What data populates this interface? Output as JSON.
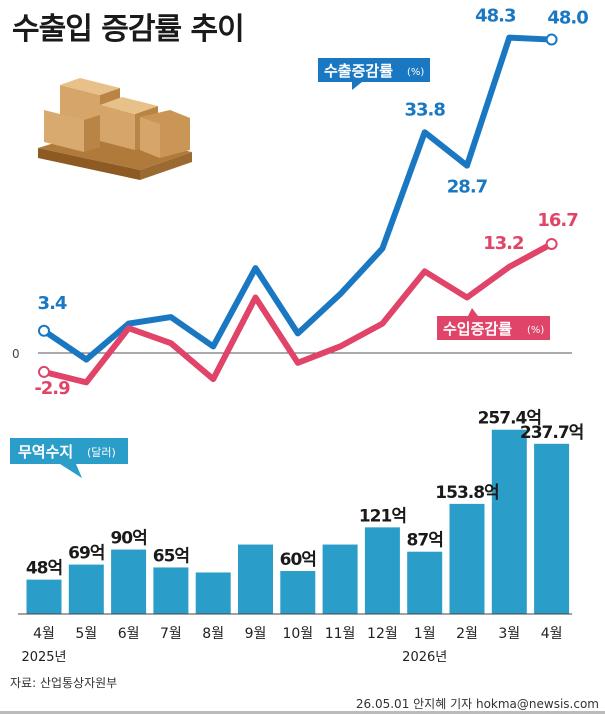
{
  "title": "수출입 증감률 추이",
  "chart_data": [
    {
      "type": "line",
      "title": "",
      "xlabel": "",
      "ylabel": "",
      "zero_label": "0",
      "categories": [
        "4월",
        "5월",
        "6월",
        "7월",
        "8월",
        "9월",
        "10월",
        "11월",
        "12월",
        "1월",
        "2월",
        "3월",
        "4월"
      ],
      "series": [
        {
          "name": "수출증감률",
          "unit": "(%)",
          "color": "#1a78c2",
          "values": [
            3.4,
            -1.0,
            4.5,
            5.5,
            1.0,
            13.0,
            3.0,
            9.0,
            16.0,
            33.8,
            28.7,
            48.3,
            48.0
          ],
          "labels": {
            "0": "3.4",
            "9": "33.8",
            "10": "28.7",
            "11": "48.3",
            "12": "48.0"
          }
        },
        {
          "name": "수입증감률",
          "unit": "(%)",
          "color": "#e04468",
          "values": [
            -2.9,
            -4.5,
            3.8,
            1.5,
            -4.0,
            8.5,
            -1.5,
            1.0,
            4.5,
            12.5,
            8.5,
            13.2,
            16.7
          ],
          "labels": {
            "0": "-2.9",
            "11": "13.2",
            "12": "16.7"
          }
        }
      ]
    },
    {
      "type": "bar",
      "title": "무역수지",
      "unit": "(달러)",
      "color": "#2a9dc8",
      "categories": [
        "4월",
        "5월",
        "6월",
        "7월",
        "8월",
        "9월",
        "10월",
        "11월",
        "12월",
        "1월",
        "2월",
        "3월",
        "4월"
      ],
      "values": [
        48,
        69,
        90,
        65,
        58,
        97,
        60,
        97,
        121,
        87,
        153.8,
        257.4,
        237.7
      ],
      "labels": {
        "0": "48억",
        "1": "69억",
        "2": "90억",
        "3": "65억",
        "6": "60억",
        "8": "121억",
        "9": "87억",
        "10": "153.8억",
        "11": "257.4억",
        "12": "237.7억"
      },
      "year_labels": {
        "0": "2025년",
        "9": "2026년"
      }
    }
  ],
  "source": "자료: 산업통상자원부",
  "footer": "26.05.01  안지혜  기자  hokma@newsis.com"
}
